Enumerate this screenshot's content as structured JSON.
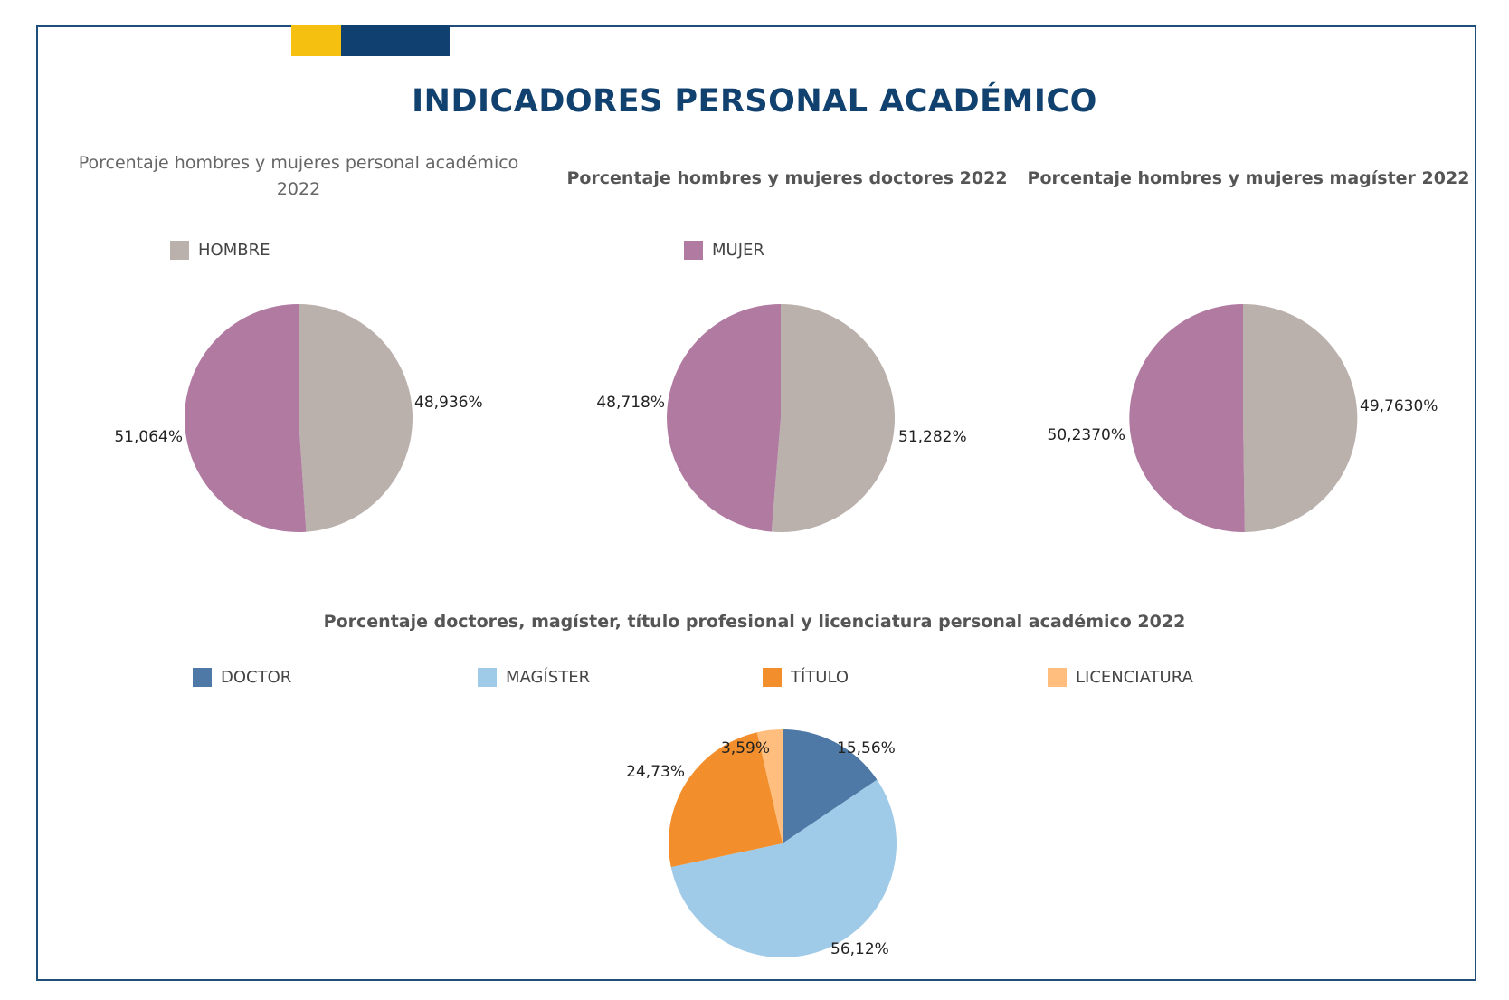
{
  "page": {
    "title": "INDICADORES PERSONAL ACADÉMICO",
    "colors": {
      "accent_yellow": "#f5c00f",
      "accent_blue": "#0f406f",
      "frame": "#1f4e79",
      "hombre": "#bab0ac",
      "mujer": "#b07aa1",
      "doctor": "#4e79a7",
      "magister": "#a0cbe8",
      "titulo": "#f28e2b",
      "licenciatura": "#ffbe7d"
    }
  },
  "chart_data": [
    {
      "type": "pie",
      "title": "Porcentaje hombres y mujeres personal académico 2022",
      "title_lines": [
        "Porcentaje hombres y mujeres personal académico",
        "2022"
      ],
      "legend": [
        "HOMBRE"
      ],
      "legend_placement": "top-left",
      "categories": [
        "HOMBRE",
        "MUJER"
      ],
      "values": [
        48.936,
        51.064
      ],
      "labels": [
        "48,936%",
        "51,064%"
      ],
      "colors": [
        "#bab0ac",
        "#b07aa1"
      ]
    },
    {
      "type": "pie",
      "title": "Porcentaje hombres y mujeres doctores 2022",
      "legend": [
        "MUJER"
      ],
      "legend_placement": "top-left",
      "categories": [
        "HOMBRE",
        "MUJER"
      ],
      "values": [
        51.282,
        48.718
      ],
      "labels": [
        "51,282%",
        "48,718%"
      ],
      "colors": [
        "#bab0ac",
        "#b07aa1"
      ]
    },
    {
      "type": "pie",
      "title": "Porcentaje hombres y mujeres magíster 2022",
      "legend": [],
      "categories": [
        "HOMBRE",
        "MUJER"
      ],
      "values": [
        49.763,
        50.237
      ],
      "labels": [
        "49,7630%",
        "50,2370%"
      ],
      "colors": [
        "#bab0ac",
        "#b07aa1"
      ]
    },
    {
      "type": "pie",
      "title": "Porcentaje doctores, magíster, título profesional y licenciatura personal académico 2022",
      "legend": [
        "DOCTOR",
        "MAGÍSTER",
        "TÍTULO",
        "LICENCIATURA"
      ],
      "legend_placement": "top",
      "categories": [
        "DOCTOR",
        "MAGÍSTER",
        "TÍTULO",
        "LICENCIATURA"
      ],
      "values": [
        15.56,
        56.12,
        24.73,
        3.59
      ],
      "labels": [
        "15,56%",
        "56,12%",
        "24,73%",
        "3,59%"
      ],
      "colors": [
        "#4e79a7",
        "#a0cbe8",
        "#f28e2b",
        "#ffbe7d"
      ]
    }
  ]
}
